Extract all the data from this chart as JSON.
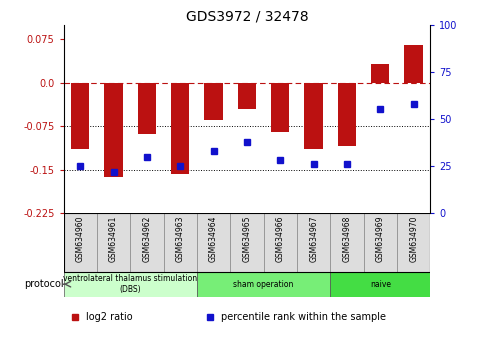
{
  "title": "GDS3972 / 32478",
  "samples": [
    "GSM634960",
    "GSM634961",
    "GSM634962",
    "GSM634963",
    "GSM634964",
    "GSM634965",
    "GSM634966",
    "GSM634967",
    "GSM634968",
    "GSM634969",
    "GSM634970"
  ],
  "log2_ratio": [
    -0.115,
    -0.162,
    -0.088,
    -0.158,
    -0.065,
    -0.045,
    -0.085,
    -0.115,
    -0.11,
    0.033,
    0.065
  ],
  "percentile_rank": [
    25,
    22,
    30,
    25,
    33,
    38,
    28,
    26,
    26,
    55,
    58
  ],
  "bar_color": "#bb1111",
  "dot_color": "#1111cc",
  "ylim_left": [
    -0.225,
    0.1
  ],
  "ylim_right": [
    0,
    100
  ],
  "yticks_left": [
    0.075,
    0.0,
    -0.075,
    -0.15,
    -0.225
  ],
  "yticks_right": [
    100,
    75,
    50,
    25,
    0
  ],
  "dotted_lines": [
    -0.075,
    -0.15
  ],
  "groups": [
    {
      "label": "ventrolateral thalamus stimulation\n(DBS)",
      "start": 0,
      "end": 3,
      "color": "#ccffcc"
    },
    {
      "label": "sham operation",
      "start": 4,
      "end": 7,
      "color": "#77ee77"
    },
    {
      "label": "naive",
      "start": 8,
      "end": 10,
      "color": "#44dd44"
    }
  ],
  "protocol_label": "protocol",
  "legend_items": [
    {
      "color": "#bb1111",
      "label": "log2 ratio"
    },
    {
      "color": "#1111cc",
      "label": "percentile rank within the sample"
    }
  ],
  "bg_color": "#ffffff",
  "sample_bg": "#dddddd",
  "title_fontsize": 10
}
